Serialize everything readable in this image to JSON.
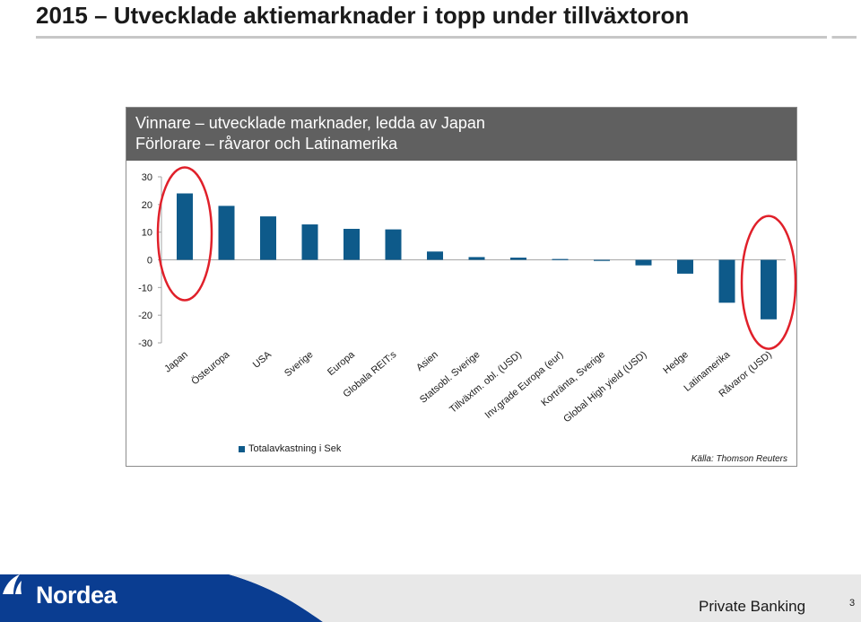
{
  "page": {
    "title": "2015 – Utvecklade aktiemarknader i topp under tillväxtoron"
  },
  "panel": {
    "header_line1": "Vinnare – utvecklade marknader, ledda av Japan",
    "header_line2": "Förlorare – råvaror och Latinamerika",
    "source": "Källa: Thomson Reuters"
  },
  "chart_data": {
    "type": "bar",
    "categories": [
      "Japan",
      "Östeuropa",
      "USA",
      "Sverige",
      "Europa",
      "Globala REIT:s",
      "Asien",
      "Statsobl. Sverige",
      "Tillväxtm. obl. (USD)",
      "Inv.grade Europa (eur)",
      "Kortränta, Sverige",
      "Global High yield (USD)",
      "Hedge",
      "Latinamerika",
      "Råvaror (USD)"
    ],
    "series": [
      {
        "name": "Totalavkastning i Sek",
        "color": "#0e5a8a",
        "values": [
          24,
          19.5,
          15.7,
          12.8,
          11.2,
          11.0,
          3.0,
          1.0,
          0.8,
          0.3,
          -0.2,
          -2.0,
          -5.0,
          -15.5,
          -21.5
        ]
      }
    ],
    "ylim": [
      -30,
      30
    ],
    "yticks": [
      30,
      20,
      10,
      0,
      -10,
      -20,
      -30
    ],
    "highlighted": [
      "Japan",
      "Råvaror (USD)"
    ],
    "highlight_color": "#e0202a",
    "legend_position": "bottom-left"
  },
  "footer": {
    "brand": "Nordea",
    "label": "Private Banking",
    "page_number": "3",
    "brand_color": "#0a3d91"
  }
}
